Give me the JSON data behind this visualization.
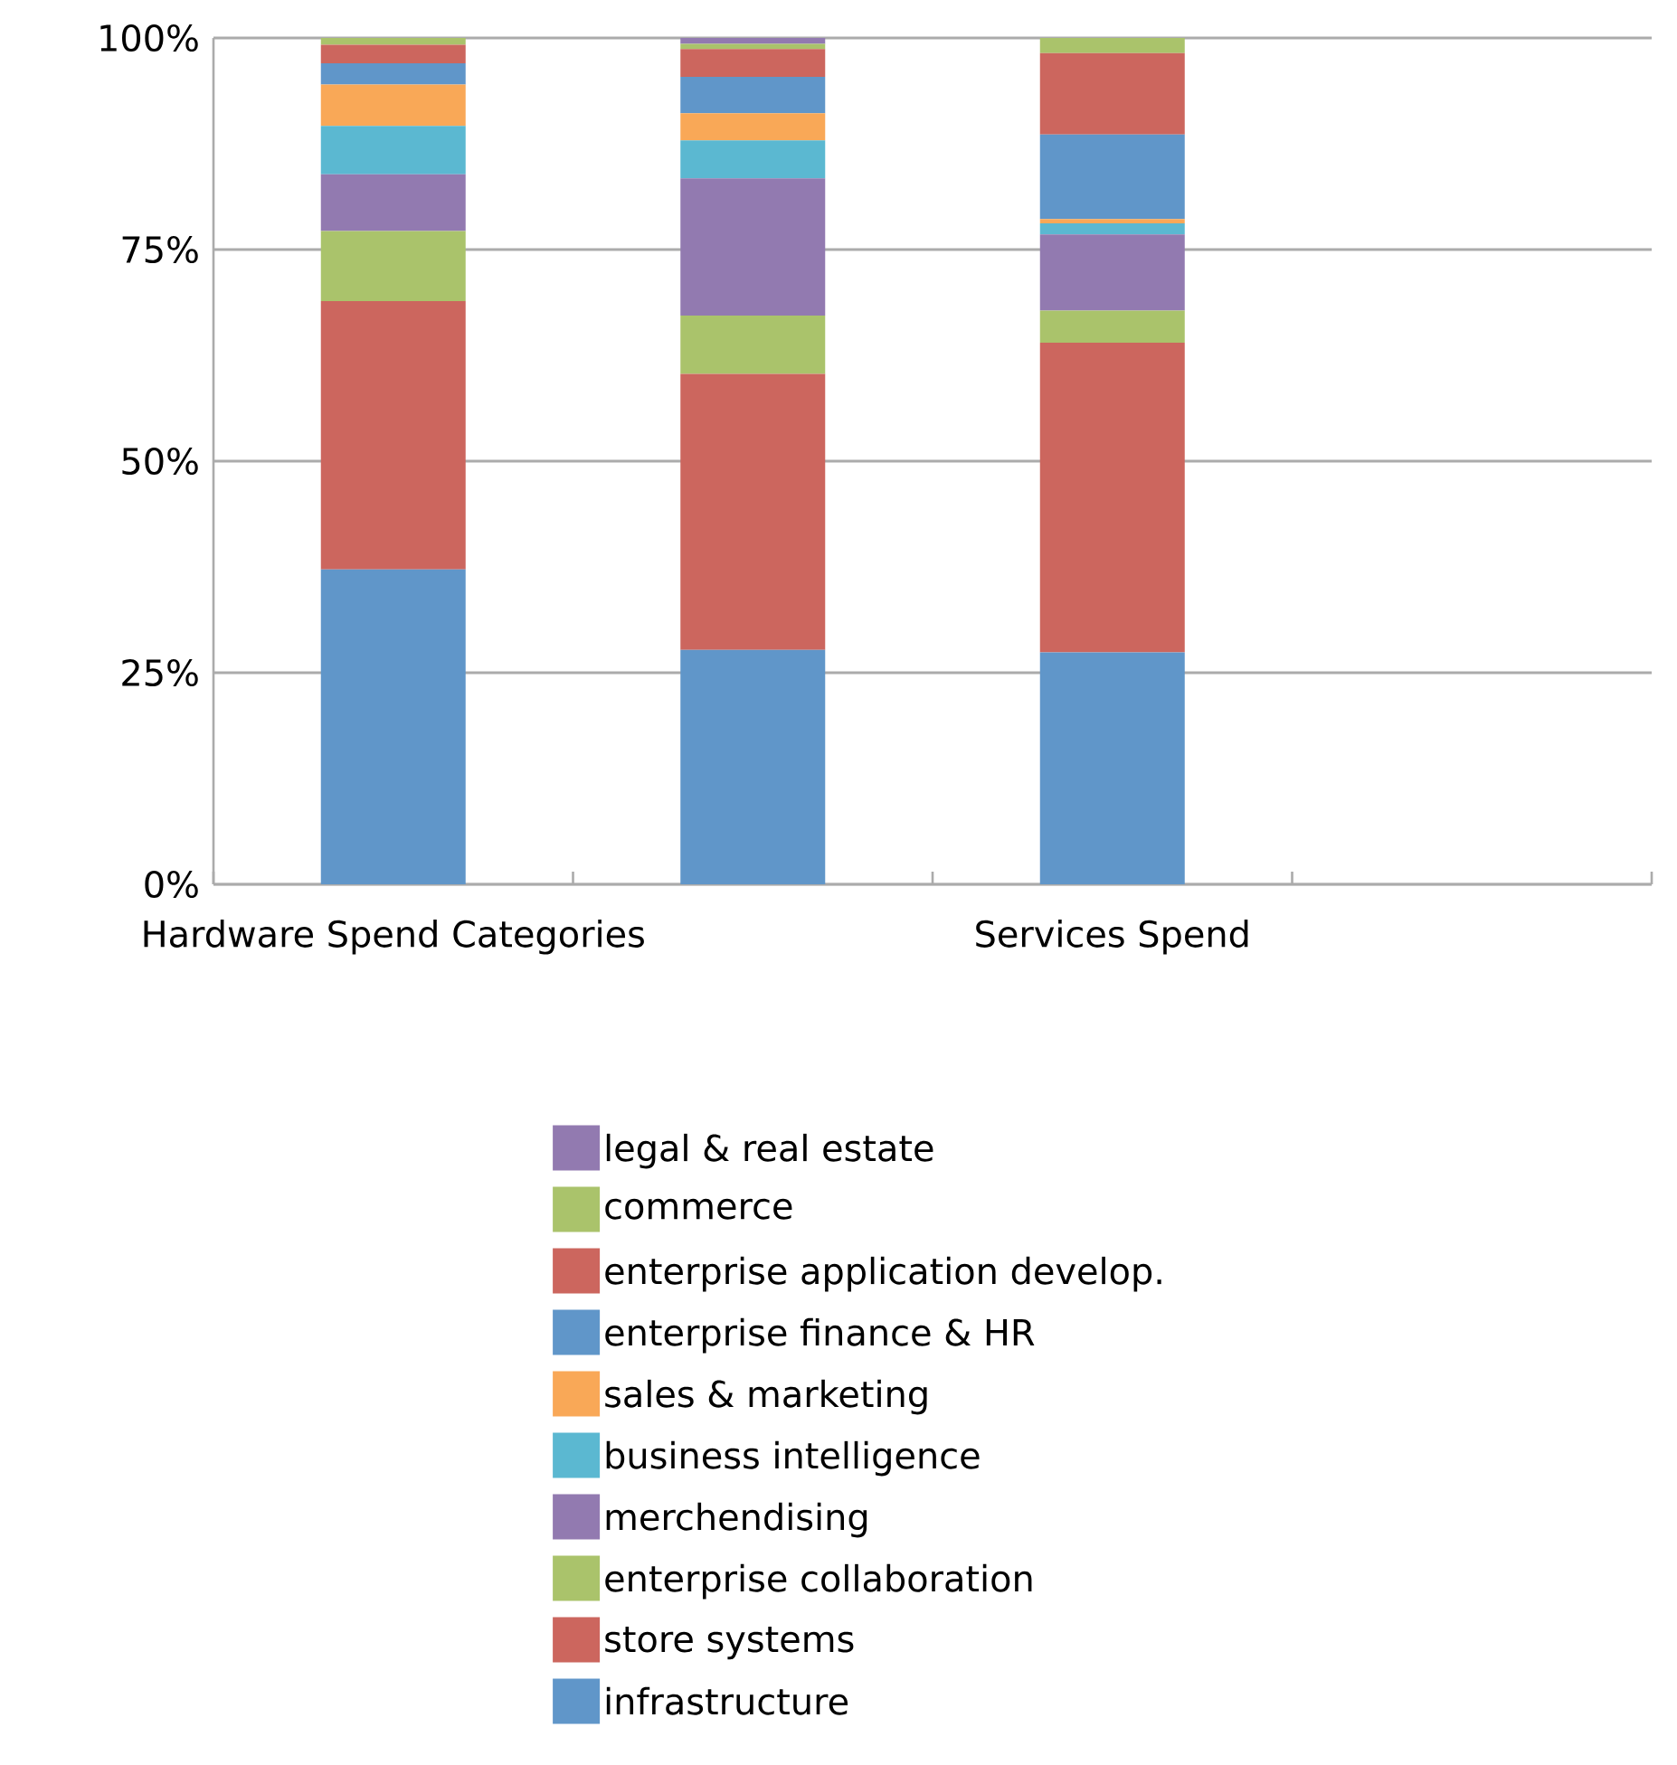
{
  "chart_data": {
    "type": "bar",
    "stacked": true,
    "categories": [
      "Hardware Spend Categories",
      null,
      "Services Spend",
      null
    ],
    "ylim": [
      0,
      100
    ],
    "yticks": [
      {
        "value": 0,
        "label": "0%"
      },
      {
        "value": 25,
        "label": "25%"
      },
      {
        "value": 50,
        "label": "50%"
      },
      {
        "value": 75,
        "label": "75%"
      },
      {
        "value": 100,
        "label": "100%"
      }
    ],
    "grid": "y",
    "legend": "bottom",
    "series": [
      {
        "name": "infrastructure",
        "color": "#6096c9",
        "values": [
          37.2,
          27.7,
          27.4,
          null
        ]
      },
      {
        "name": "store systems",
        "color": "#cc665e",
        "values": [
          31.7,
          32.6,
          36.6,
          null
        ]
      },
      {
        "name": "enterprise collaboration",
        "color": "#aac36b",
        "values": [
          8.3,
          6.9,
          3.8,
          null
        ]
      },
      {
        "name": "merchendising",
        "color": "#927ab0",
        "values": [
          6.7,
          16.2,
          9.0,
          null
        ]
      },
      {
        "name": "business intelligence",
        "color": "#5bb8d1",
        "values": [
          5.7,
          4.5,
          1.3,
          null
        ]
      },
      {
        "name": "sales & marketing",
        "color": "#f9a857",
        "values": [
          4.9,
          3.2,
          0.5,
          null
        ]
      },
      {
        "name": "enterprise finance & HR",
        "color": "#6096c9",
        "values": [
          2.5,
          4.3,
          10.0,
          null
        ]
      },
      {
        "name": "enterprise application develop.",
        "color": "#cc665e",
        "values": [
          2.2,
          3.3,
          9.6,
          null
        ]
      },
      {
        "name": "commerce",
        "color": "#aac36b",
        "values": [
          0.8,
          0.6,
          1.8,
          null
        ]
      },
      {
        "name": "legal & real estate",
        "color": "#927ab0",
        "values": [
          0,
          0.7,
          0,
          null
        ]
      }
    ]
  }
}
